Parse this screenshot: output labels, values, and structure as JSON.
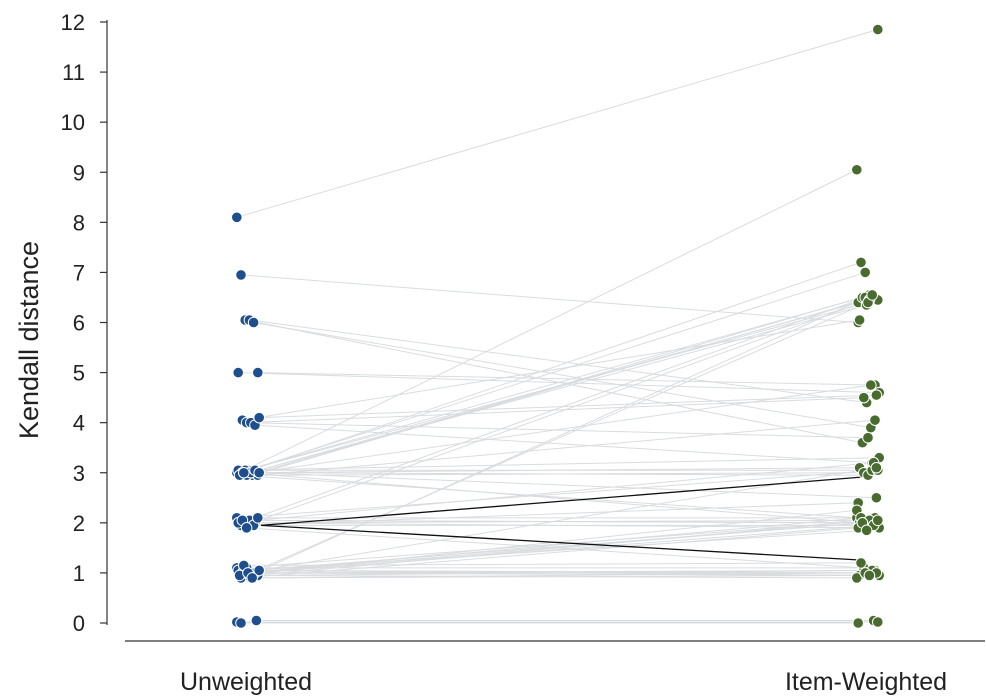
{
  "chart_data": {
    "type": "scatter",
    "ylabel": "Kendall distance",
    "xlabel": "",
    "ylim": [
      0,
      12
    ],
    "yticks": [
      "0",
      "1",
      "2",
      "3",
      "4",
      "5",
      "6",
      "7",
      "8",
      "9",
      "10",
      "11",
      "12"
    ],
    "categories": [
      "Unweighted",
      "Item-Weighted"
    ],
    "grid": false,
    "legend": "none",
    "colors": {
      "unweighted": "#1f4e8c",
      "item_weighted": "#4a6b30",
      "pair_line": "#d9dcdf",
      "highlight_line": "#111111",
      "axis": "#333333"
    },
    "pairs": [
      [
        8.1,
        11.85
      ],
      [
        6.95,
        6.0
      ],
      [
        6.05,
        3.6
      ],
      [
        6.05,
        4.4
      ],
      [
        6.0,
        3.9
      ],
      [
        5.0,
        4.75
      ],
      [
        5.0,
        4.6
      ],
      [
        4.05,
        6.05
      ],
      [
        4.0,
        4.5
      ],
      [
        4.0,
        3.7
      ],
      [
        3.95,
        3.2
      ],
      [
        4.1,
        4.55
      ],
      [
        3.0,
        9.05
      ],
      [
        3.0,
        7.2
      ],
      [
        3.05,
        7.0
      ],
      [
        2.95,
        6.55
      ],
      [
        3.0,
        6.5
      ],
      [
        3.0,
        6.45
      ],
      [
        2.95,
        6.4
      ],
      [
        3.05,
        6.5
      ],
      [
        3.0,
        6.35
      ],
      [
        3.0,
        4.75
      ],
      [
        2.95,
        4.05
      ],
      [
        3.05,
        3.3
      ],
      [
        3.0,
        3.1
      ],
      [
        2.95,
        3.0
      ],
      [
        3.0,
        2.95
      ],
      [
        3.05,
        3.05
      ],
      [
        3.0,
        2.5
      ],
      [
        2.95,
        2.1
      ],
      [
        3.0,
        2.0
      ],
      [
        2.05,
        6.5
      ],
      [
        2.0,
        6.45
      ],
      [
        2.05,
        3.2
      ],
      [
        2.1,
        3.05
      ],
      [
        1.95,
        2.4
      ],
      [
        2.0,
        2.05
      ],
      [
        2.05,
        2.0
      ],
      [
        1.95,
        1.95
      ],
      [
        2.1,
        2.1
      ],
      [
        2.0,
        1.9
      ],
      [
        2.05,
        2.0
      ],
      [
        1.9,
        1.1
      ],
      [
        1.0,
        6.4
      ],
      [
        1.0,
        6.55
      ],
      [
        1.05,
        3.1
      ],
      [
        0.95,
        2.25
      ],
      [
        1.0,
        2.1
      ],
      [
        1.05,
        2.0
      ],
      [
        0.95,
        2.05
      ],
      [
        1.0,
        1.95
      ],
      [
        1.1,
        2.05
      ],
      [
        0.9,
        1.9
      ],
      [
        1.0,
        2.0
      ],
      [
        1.05,
        1.85
      ],
      [
        1.0,
        1.0
      ],
      [
        0.95,
        1.05
      ],
      [
        1.05,
        0.95
      ],
      [
        1.0,
        0.95
      ],
      [
        1.1,
        1.1
      ],
      [
        0.9,
        1.0
      ],
      [
        1.0,
        1.05
      ],
      [
        1.05,
        1.0
      ],
      [
        0.95,
        0.9
      ],
      [
        1.15,
        1.2
      ],
      [
        1.0,
        1.0
      ],
      [
        0.9,
        0.95
      ],
      [
        0.05,
        0.05
      ],
      [
        0.02,
        0.02
      ],
      [
        0.0,
        0.0
      ]
    ],
    "highlight_pairs": [
      [
        1.95,
        2.92
      ],
      [
        1.95,
        1.25
      ]
    ]
  }
}
